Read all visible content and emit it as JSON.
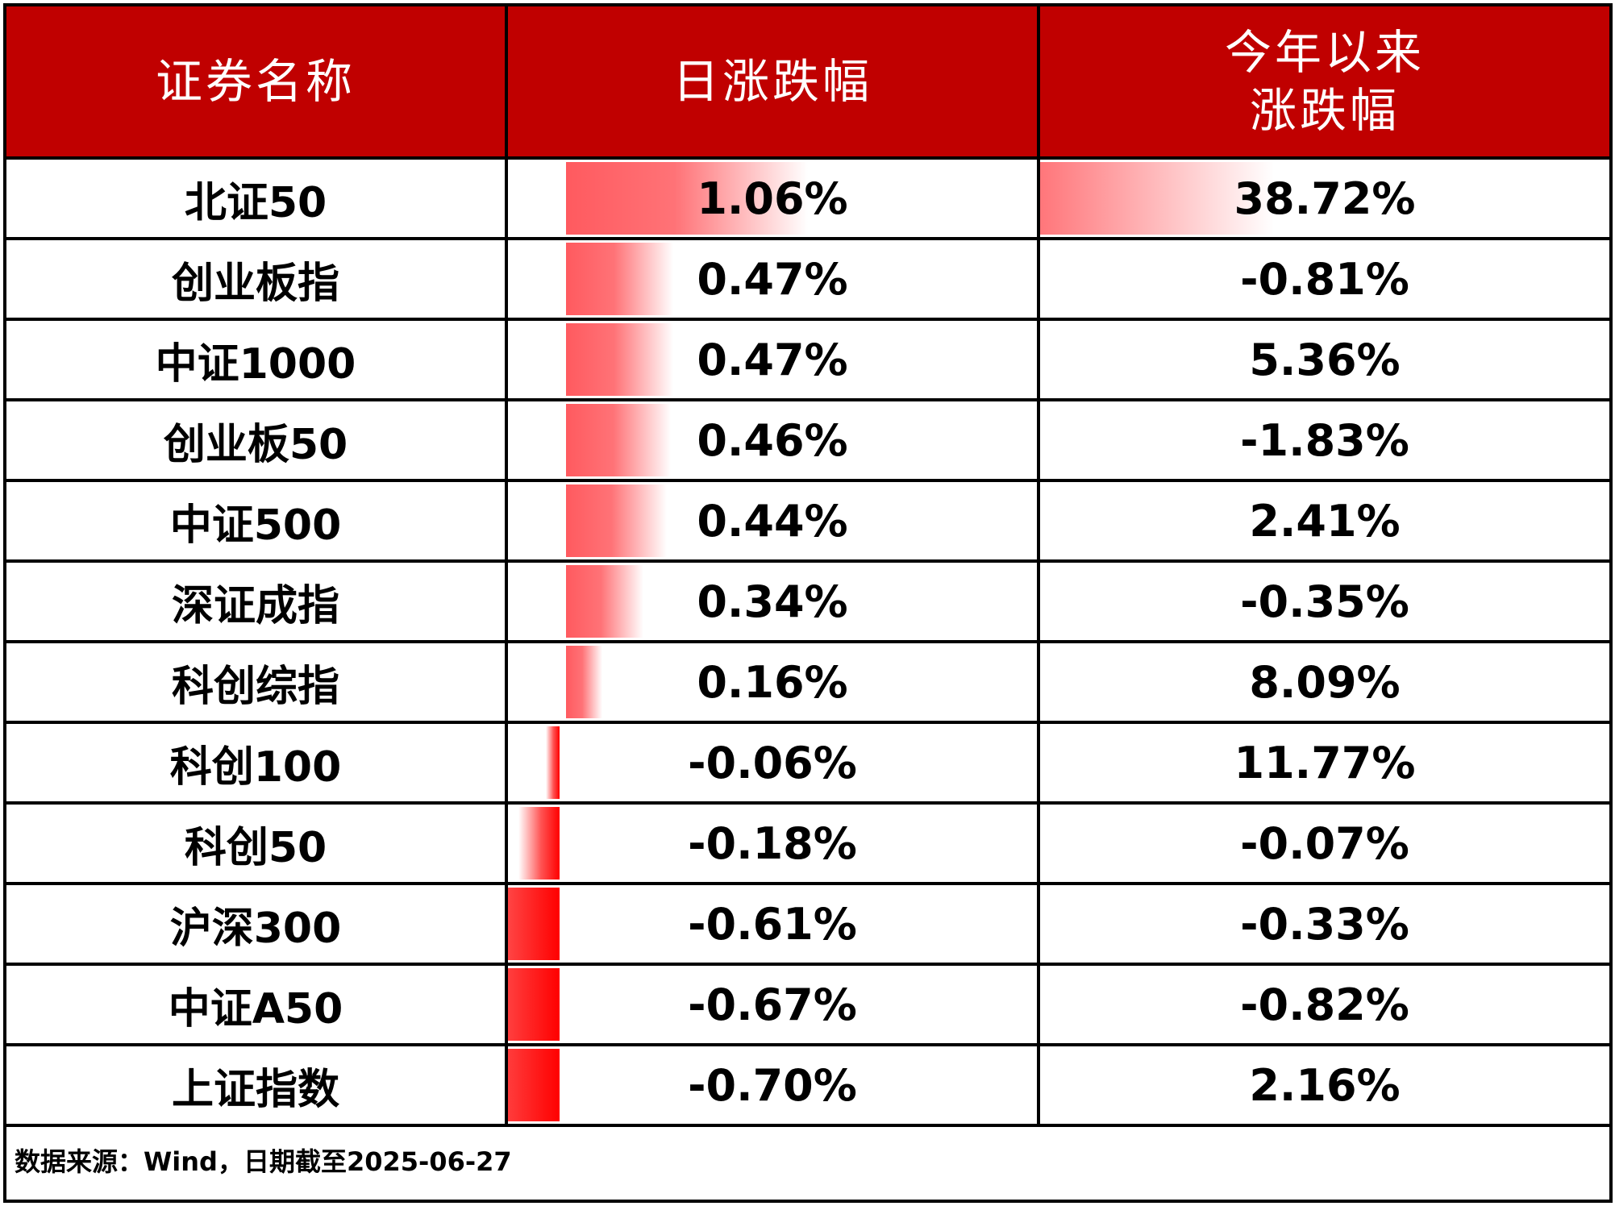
{
  "chart_data": {
    "type": "table",
    "columns": [
      "证券名称",
      "日涨跌幅",
      "今年以来\n涨跌幅"
    ],
    "rows": [
      {
        "name": "北证50",
        "daily": 1.06,
        "daily_label": "1.06%",
        "ytd": 38.72,
        "ytd_label": "38.72%"
      },
      {
        "name": "创业板指",
        "daily": 0.47,
        "daily_label": "0.47%",
        "ytd": -0.81,
        "ytd_label": "-0.81%"
      },
      {
        "name": "中证1000",
        "daily": 0.47,
        "daily_label": "0.47%",
        "ytd": 5.36,
        "ytd_label": "5.36%"
      },
      {
        "name": "创业板50",
        "daily": 0.46,
        "daily_label": "0.46%",
        "ytd": -1.83,
        "ytd_label": "-1.83%"
      },
      {
        "name": "中证500",
        "daily": 0.44,
        "daily_label": "0.44%",
        "ytd": 2.41,
        "ytd_label": "2.41%"
      },
      {
        "name": "深证成指",
        "daily": 0.34,
        "daily_label": "0.34%",
        "ytd": -0.35,
        "ytd_label": "-0.35%"
      },
      {
        "name": "科创综指",
        "daily": 0.16,
        "daily_label": "0.16%",
        "ytd": 8.09,
        "ytd_label": "8.09%"
      },
      {
        "name": "科创100",
        "daily": -0.06,
        "daily_label": "-0.06%",
        "ytd": 11.77,
        "ytd_label": "11.77%"
      },
      {
        "name": "科创50",
        "daily": -0.18,
        "daily_label": "-0.18%",
        "ytd": -0.07,
        "ytd_label": "-0.07%"
      },
      {
        "name": "沪深300",
        "daily": -0.61,
        "daily_label": "-0.61%",
        "ytd": -0.33,
        "ytd_label": "-0.33%"
      },
      {
        "name": "中证A50",
        "daily": -0.67,
        "daily_label": "-0.67%",
        "ytd": -0.82,
        "ytd_label": "-0.82%"
      },
      {
        "name": "上证指数",
        "daily": -0.7,
        "daily_label": "-0.70%",
        "ytd": 2.16,
        "ytd_label": "2.16%"
      }
    ],
    "source": "数据来源：Wind，日期截至2025-06-27",
    "colors": {
      "header_bg": "#c00000",
      "header_text": "#ffffff",
      "positive_bar": "#ff5a5f",
      "negative_bar": "#ff0000"
    }
  }
}
